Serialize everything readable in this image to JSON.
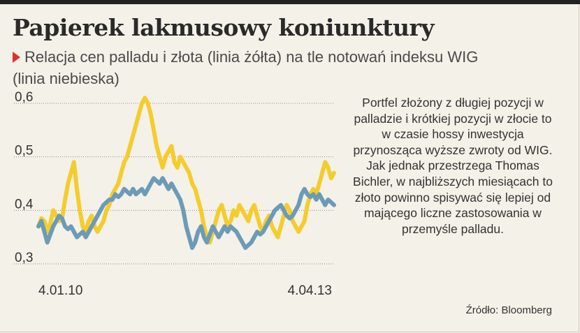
{
  "title": "Papierek lakmusowy koniunktury",
  "subtitle": "Relacja cen palladu i złota (linia żółta) na tle notowań indeksu WIG (linia niebieska)",
  "note": "Portfel złożony z długiej pozycji w palladzie i krótkiej pozycji w złocie to w czasie hossy inwestycja przynosząca wyższe zwroty od WIG. Jak jednak przestrzega Thomas Bichler, w najbliższych miesiącach to złoto powinno spisywać się lepiej od mającego liczne zastosowania w przemyśle palladu.",
  "source": "Źródło: Bloomberg",
  "colors": {
    "accent_marker": "#e0302a",
    "palladium_gold_line": "#f5cc2e",
    "wig_line": "#6b9bb7",
    "gridline": "#8a8a8a",
    "background": "#f4f1e8"
  },
  "chart_data": {
    "type": "line",
    "ylim": [
      0.3,
      0.6
    ],
    "yticks": [
      "0,6",
      "0,5",
      "0,4",
      "0,3"
    ],
    "ytick_values": [
      0.6,
      0.5,
      0.4,
      0.3
    ],
    "x_labels": [
      "4.01.10",
      "4.04.13"
    ],
    "grid": true,
    "series": [
      {
        "color_key": "palladium_gold_line",
        "values": [
          0.37,
          0.385,
          0.38,
          0.36,
          0.375,
          0.4,
          0.39,
          0.38,
          0.385,
          0.42,
          0.45,
          0.47,
          0.49,
          0.44,
          0.4,
          0.37,
          0.36,
          0.38,
          0.39,
          0.37,
          0.36,
          0.37,
          0.38,
          0.4,
          0.41,
          0.43,
          0.44,
          0.45,
          0.47,
          0.49,
          0.5,
          0.52,
          0.54,
          0.56,
          0.58,
          0.6,
          0.61,
          0.6,
          0.58,
          0.55,
          0.52,
          0.5,
          0.48,
          0.5,
          0.51,
          0.52,
          0.49,
          0.48,
          0.5,
          0.49,
          0.48,
          0.47,
          0.45,
          0.44,
          0.42,
          0.4,
          0.37,
          0.35,
          0.34,
          0.36,
          0.38,
          0.4,
          0.41,
          0.39,
          0.37,
          0.38,
          0.4,
          0.39,
          0.41,
          0.4,
          0.39,
          0.38,
          0.4,
          0.41,
          0.39,
          0.37,
          0.36,
          0.38,
          0.39,
          0.37,
          0.36,
          0.35,
          0.37,
          0.39,
          0.41,
          0.4,
          0.38,
          0.37,
          0.36,
          0.37,
          0.38,
          0.41,
          0.43,
          0.44,
          0.43,
          0.45,
          0.47,
          0.49,
          0.48,
          0.46,
          0.47
        ]
      },
      {
        "color_key": "wig_line",
        "values": [
          0.37,
          0.38,
          0.36,
          0.34,
          0.355,
          0.37,
          0.38,
          0.39,
          0.385,
          0.37,
          0.365,
          0.37,
          0.36,
          0.35,
          0.355,
          0.36,
          0.35,
          0.36,
          0.37,
          0.38,
          0.39,
          0.4,
          0.41,
          0.415,
          0.42,
          0.42,
          0.43,
          0.425,
          0.43,
          0.44,
          0.435,
          0.43,
          0.44,
          0.43,
          0.435,
          0.44,
          0.43,
          0.44,
          0.45,
          0.46,
          0.455,
          0.45,
          0.46,
          0.45,
          0.44,
          0.45,
          0.44,
          0.43,
          0.42,
          0.4,
          0.37,
          0.35,
          0.33,
          0.34,
          0.36,
          0.37,
          0.35,
          0.34,
          0.355,
          0.37,
          0.36,
          0.35,
          0.36,
          0.37,
          0.36,
          0.37,
          0.365,
          0.36,
          0.35,
          0.34,
          0.33,
          0.335,
          0.34,
          0.35,
          0.36,
          0.355,
          0.36,
          0.37,
          0.38,
          0.39,
          0.4,
          0.405,
          0.41,
          0.4,
          0.39,
          0.385,
          0.39,
          0.4,
          0.41,
          0.43,
          0.44,
          0.43,
          0.425,
          0.43,
          0.42,
          0.43,
          0.42,
          0.41,
          0.42,
          0.415,
          0.41
        ]
      }
    ]
  }
}
